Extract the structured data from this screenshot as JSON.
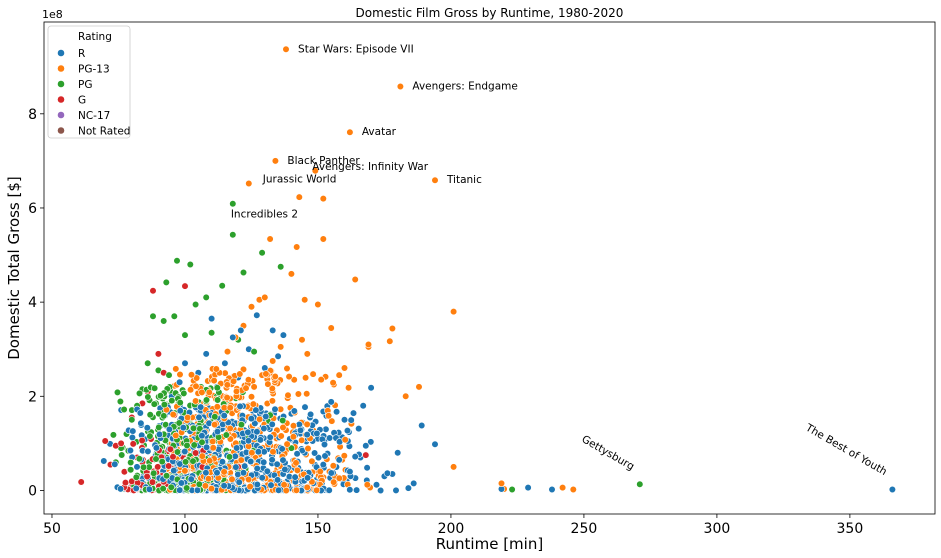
{
  "chart_data": {
    "type": "scatter",
    "title": "Domestic Film Gross by Runtime, 1980-2020",
    "xlabel": "Runtime [min]",
    "ylabel": "Domestic Total Gross [$]",
    "y_scale_label": "1e8",
    "xlim": [
      47,
      382
    ],
    "ylim": [
      -0.5,
      9.95
    ],
    "x_ticks": [
      50,
      100,
      150,
      200,
      250,
      300,
      350
    ],
    "y_ticks": [
      0,
      2,
      4,
      6,
      8
    ],
    "y_units": "1e8 USD",
    "legend": {
      "title": "Rating",
      "position": "top-left",
      "entries": [
        {
          "label": "R",
          "color": "#1f77b4"
        },
        {
          "label": "PG-13",
          "color": "#ff7f0e"
        },
        {
          "label": "PG",
          "color": "#2ca02c"
        },
        {
          "label": "G",
          "color": "#d62728"
        },
        {
          "label": "NC-17",
          "color": "#9467bd"
        },
        {
          "label": "Not Rated",
          "color": "#8c564b"
        }
      ]
    },
    "annotations": [
      {
        "text": "Star Wars: Episode VII",
        "x": 138,
        "y": 9.37,
        "rotation": 0
      },
      {
        "text": "Avengers: Endgame",
        "x": 181,
        "y": 8.58,
        "rotation": 0
      },
      {
        "text": "Avatar",
        "x": 162,
        "y": 7.61,
        "rotation": 0
      },
      {
        "text": "Black Panther",
        "x": 134,
        "y": 7.0,
        "rotation": 0
      },
      {
        "text": "Avengers: Infinity War",
        "x": 149,
        "y": 6.79,
        "rotation": 0
      },
      {
        "text": "Titanic",
        "x": 194,
        "y": 6.59,
        "rotation": 0
      },
      {
        "text": "Jurassic World",
        "x": 124,
        "y": 6.52,
        "rotation": 0
      },
      {
        "text": "Incredibles 2",
        "x": 118,
        "y": 6.09,
        "rotation": 0
      },
      {
        "text": "Gettysburg",
        "x": 271,
        "y": 0.13,
        "rotation": 30
      },
      {
        "text": "The Best of Youth",
        "x": 366,
        "y": 0.02,
        "rotation": 30
      }
    ],
    "series": [
      {
        "name": "R",
        "color": "#1f77b4",
        "points": [
          [
            366,
            0.02
          ],
          [
            238,
            0.02
          ],
          [
            229,
            0.06
          ],
          [
            219,
            0.03
          ],
          [
            194,
            0.98
          ],
          [
            189,
            1.38
          ],
          [
            184,
            0.05
          ],
          [
            178,
            0.35
          ],
          [
            172,
            0.12
          ],
          [
            170,
            2.18
          ],
          [
            167,
            1.8
          ],
          [
            164,
            0.72
          ],
          [
            160,
            1.5
          ],
          [
            157,
            1.67
          ],
          [
            155,
            1.88
          ],
          [
            153,
            1.3
          ],
          [
            150,
            1.1
          ],
          [
            147,
            1.55
          ],
          [
            143,
            1.4
          ],
          [
            140,
            1.63
          ],
          [
            137,
            3.3
          ],
          [
            135,
            2.85
          ],
          [
            133,
            3.4
          ],
          [
            130,
            2.6
          ],
          [
            127,
            3.72
          ],
          [
            124,
            3.0
          ],
          [
            121,
            3.4
          ],
          [
            118,
            3.25
          ],
          [
            110,
            3.65
          ],
          [
            108,
            2.9
          ],
          [
            105,
            2.5
          ],
          [
            120,
            2.4
          ],
          [
            115,
            2.7
          ],
          [
            112,
            2.2
          ],
          [
            100,
            2.7
          ],
          [
            98,
            2.3
          ],
          [
            95,
            2.0
          ],
          [
            145,
            0.8
          ],
          [
            148,
            1.05
          ],
          [
            152,
            0.55
          ],
          [
            158,
            0.65
          ],
          [
            162,
            0.4
          ],
          [
            166,
            0.7
          ],
          [
            168,
            0.95
          ],
          [
            175,
            0.3
          ],
          [
            180,
            0.8
          ],
          [
            186,
            0.15
          ]
        ]
      },
      {
        "name": "PG-13",
        "color": "#ff7f0e",
        "points": [
          [
            138,
            9.37
          ],
          [
            181,
            8.58
          ],
          [
            162,
            7.61
          ],
          [
            134,
            7.0
          ],
          [
            149,
            6.79
          ],
          [
            194,
            6.59
          ],
          [
            124,
            6.52
          ],
          [
            143,
            6.23
          ],
          [
            152,
            6.2
          ],
          [
            142,
            5.17
          ],
          [
            132,
            5.34
          ],
          [
            152,
            5.34
          ],
          [
            164,
            4.48
          ],
          [
            201,
            3.8
          ],
          [
            178,
            3.44
          ],
          [
            177,
            3.17
          ],
          [
            169,
            3.1
          ],
          [
            169,
            3.05
          ],
          [
            183,
            2.0
          ],
          [
            188,
            2.2
          ],
          [
            201,
            0.5
          ],
          [
            219,
            0.15
          ],
          [
            220,
            0.03
          ],
          [
            242,
            0.06
          ],
          [
            246,
            0.02
          ],
          [
            140,
            4.6
          ],
          [
            145,
            4.05
          ],
          [
            150,
            3.95
          ],
          [
            155,
            3.45
          ],
          [
            130,
            4.1
          ],
          [
            128,
            4.05
          ],
          [
            125,
            3.9
          ],
          [
            122,
            3.5
          ],
          [
            119,
            3.25
          ],
          [
            116,
            2.95
          ],
          [
            113,
            2.5
          ],
          [
            110,
            2.35
          ],
          [
            107,
            2.1
          ],
          [
            104,
            1.9
          ],
          [
            101,
            1.55
          ],
          [
            98,
            1.25
          ],
          [
            95,
            1.0
          ],
          [
            160,
            2.6
          ],
          [
            158,
            2.45
          ],
          [
            156,
            2.25
          ],
          [
            146,
            2.9
          ],
          [
            144,
            3.2
          ],
          [
            136,
            3.05
          ],
          [
            133,
            2.75
          ],
          [
            129,
            2.45
          ],
          [
            126,
            2.2
          ]
        ]
      },
      {
        "name": "PG",
        "color": "#2ca02c",
        "points": [
          [
            118,
            6.09
          ],
          [
            118,
            5.43
          ],
          [
            129,
            5.05
          ],
          [
            122,
            4.63
          ],
          [
            136,
            4.75
          ],
          [
            97,
            4.88
          ],
          [
            102,
            4.8
          ],
          [
            93,
            4.42
          ],
          [
            108,
            4.1
          ],
          [
            104,
            3.95
          ],
          [
            114,
            4.35
          ],
          [
            88,
            3.7
          ],
          [
            92,
            3.6
          ],
          [
            96,
            3.7
          ],
          [
            100,
            3.3
          ],
          [
            110,
            3.35
          ],
          [
            120,
            3.2
          ],
          [
            126,
            2.95
          ],
          [
            86,
            2.7
          ],
          [
            90,
            2.55
          ],
          [
            94,
            2.45
          ],
          [
            98,
            2.3
          ],
          [
            84,
            2.15
          ],
          [
            82,
            1.8
          ],
          [
            80,
            1.5
          ],
          [
            78,
            1.2
          ],
          [
            76,
            0.9
          ],
          [
            74,
            0.6
          ],
          [
            271,
            0.13
          ],
          [
            223,
            0.02
          ],
          [
            106,
            2.2
          ],
          [
            112,
            2.0
          ],
          [
            116,
            1.85
          ],
          [
            132,
            1.6
          ],
          [
            140,
            0.9
          ]
        ]
      },
      {
        "name": "G",
        "color": "#d62728",
        "points": [
          [
            88,
            4.24
          ],
          [
            100,
            4.34
          ],
          [
            90,
            2.9
          ],
          [
            92,
            2.5
          ],
          [
            86,
            2.1
          ],
          [
            80,
            1.55
          ],
          [
            76,
            1.0
          ],
          [
            74,
            0.95
          ],
          [
            70,
            1.05
          ],
          [
            72,
            0.55
          ],
          [
            61,
            0.18
          ],
          [
            84,
            1.85
          ],
          [
            96,
            1.6
          ],
          [
            104,
            1.2
          ],
          [
            110,
            0.8
          ],
          [
            120,
            0.5
          ],
          [
            168,
            0.75
          ],
          [
            82,
            0.7
          ]
        ]
      },
      {
        "name": "NC-17",
        "color": "#9467bd",
        "points": [
          [
            118,
            0.03
          ],
          [
            110,
            0.02
          ]
        ]
      },
      {
        "name": "Not Rated",
        "color": "#8c564b",
        "points": [
          [
            100,
            0.02
          ],
          [
            150,
            0.01
          ]
        ]
      }
    ],
    "dense_cloud": {
      "note": "dense band of many films",
      "R": {
        "x_range": [
          64,
          185
        ],
        "y_range": [
          0.0,
          1.8
        ],
        "peak_x": 108
      },
      "PG-13": {
        "x_range": [
          82,
          180
        ],
        "y_range": [
          0.0,
          2.6
        ],
        "peak_x": 112
      },
      "PG": {
        "x_range": [
          70,
          140
        ],
        "y_range": [
          0.0,
          2.2
        ],
        "peak_x": 95
      },
      "G": {
        "x_range": [
          70,
          120
        ],
        "y_range": [
          0.0,
          1.2
        ],
        "peak_x": 88
      }
    }
  }
}
